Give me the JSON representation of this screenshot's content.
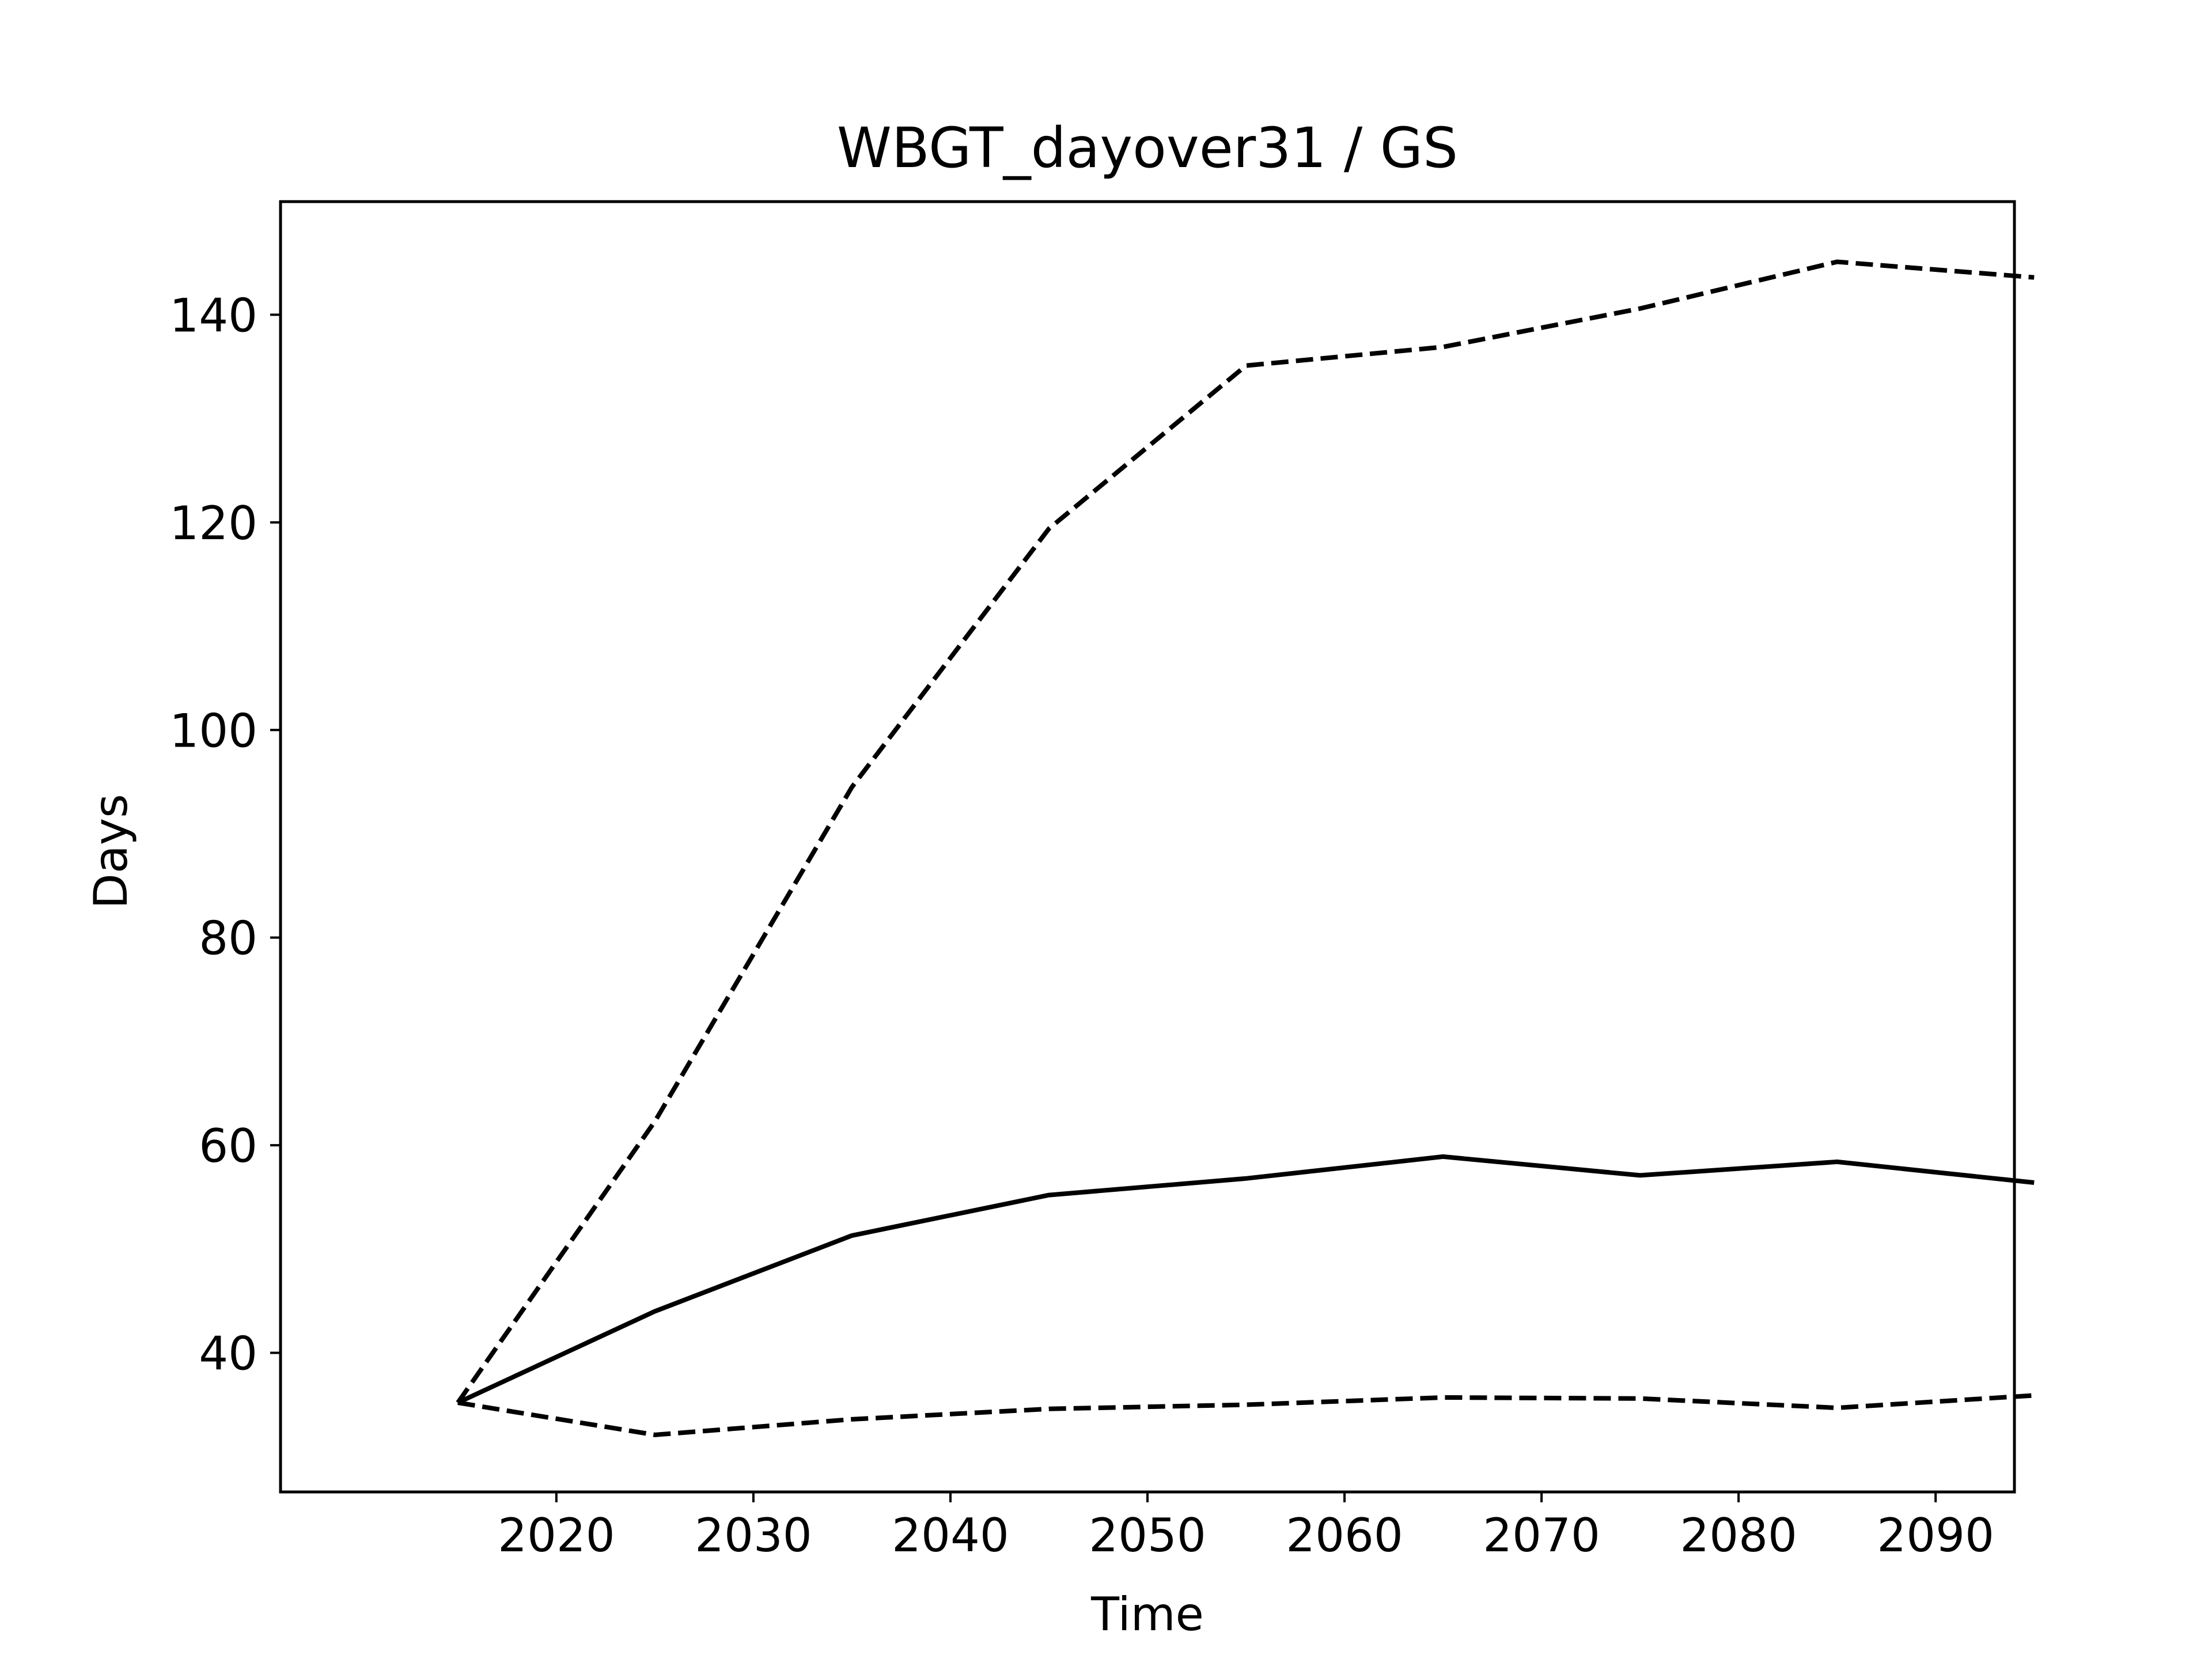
{
  "chart_data": {
    "type": "line",
    "title": "WBGT_dayover31 / GS",
    "xlabel": "Time",
    "ylabel": "Days",
    "x": [
      2015,
      2025,
      2035,
      2045,
      2055,
      2065,
      2075,
      2085,
      2095
    ],
    "xlim": [
      2006,
      2094
    ],
    "ylim": [
      26.6,
      150.9
    ],
    "xticks": [
      2020,
      2030,
      2040,
      2050,
      2060,
      2070,
      2080,
      2090
    ],
    "yticks": [
      40,
      60,
      80,
      100,
      120,
      140
    ],
    "grid": false,
    "series": [
      {
        "style": "dashed",
        "color": "#000000",
        "values": [
          35.2,
          62.3,
          94.5,
          119.4,
          135.1,
          136.9,
          140.6,
          145.1,
          143.6
        ]
      },
      {
        "style": "solid",
        "color": "#000000",
        "values": [
          35.2,
          44.0,
          51.3,
          55.2,
          56.8,
          58.9,
          57.1,
          58.4,
          56.4
        ]
      },
      {
        "style": "dashed",
        "color": "#000000",
        "values": [
          35.2,
          32.1,
          33.6,
          34.6,
          35.0,
          35.7,
          35.6,
          34.7,
          35.9
        ]
      }
    ]
  }
}
